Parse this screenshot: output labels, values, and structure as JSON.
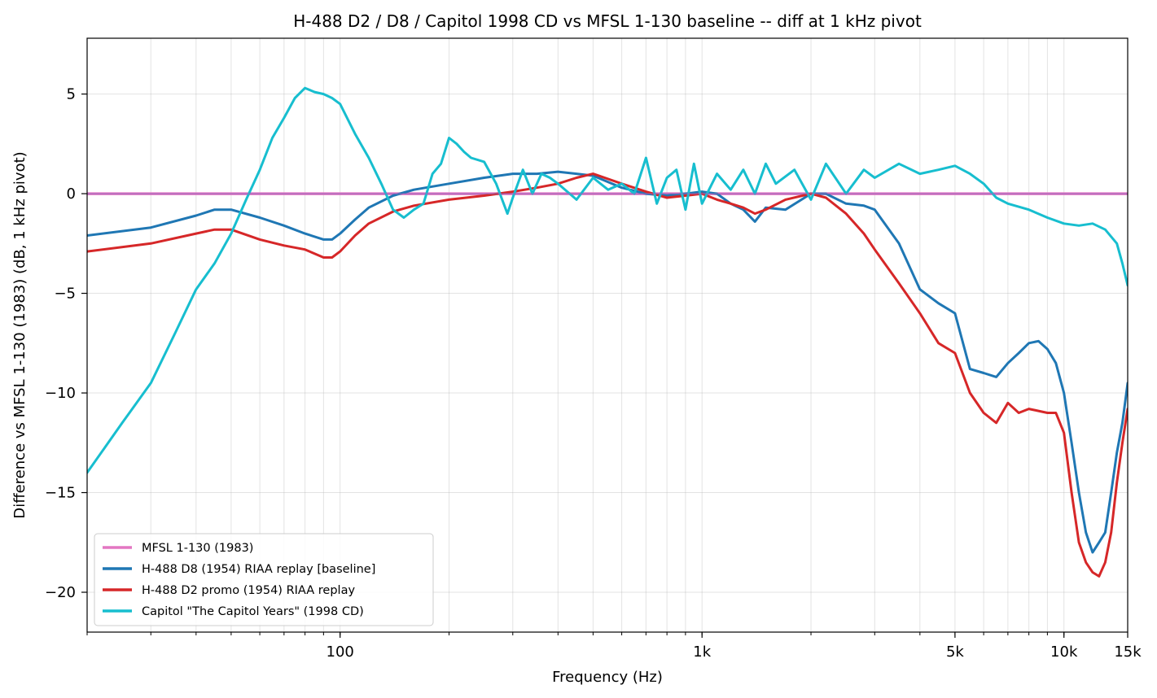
{
  "chart_data": {
    "type": "line",
    "title": "H-488 D2 / D8 / Capitol 1998 CD vs MFSL 1-130 baseline -- diff at 1 kHz pivot",
    "xlabel": "Frequency (Hz)",
    "ylabel": "Difference vs MFSL 1-130 (1983) (dB, 1 kHz pivot)",
    "xscale": "log",
    "xlim": [
      20,
      15000
    ],
    "ylim": [
      -22,
      7.8
    ],
    "grid": true,
    "legend_position": "lower-left",
    "x_ticks": [
      {
        "value": 100,
        "label": "100"
      },
      {
        "value": 1000,
        "label": "1k"
      },
      {
        "value": 5000,
        "label": "5k"
      },
      {
        "value": 10000,
        "label": "10k"
      },
      {
        "value": 15000,
        "label": "15k"
      }
    ],
    "y_ticks": [
      {
        "value": 5,
        "label": "5"
      },
      {
        "value": 0,
        "label": "0"
      },
      {
        "value": -5,
        "label": "−5"
      },
      {
        "value": -10,
        "label": "−10"
      },
      {
        "value": -15,
        "label": "−15"
      },
      {
        "value": -20,
        "label": "−20"
      }
    ],
    "series": [
      {
        "name": "MFSL 1-130 (1983)",
        "color": "#e377c2",
        "x": [
          20,
          15000
        ],
        "y": [
          0,
          0
        ]
      },
      {
        "name": "H-488 D8 (1954) RIAA replay [baseline]",
        "color": "#1f77b4",
        "x": [
          20,
          30,
          40,
          45,
          50,
          60,
          70,
          80,
          90,
          95,
          100,
          110,
          120,
          140,
          160,
          200,
          250,
          300,
          350,
          400,
          450,
          500,
          600,
          700,
          800,
          900,
          1000,
          1100,
          1200,
          1300,
          1400,
          1500,
          1700,
          2000,
          2200,
          2500,
          2800,
          3000,
          3500,
          4000,
          4500,
          5000,
          5500,
          6000,
          6500,
          7000,
          7500,
          8000,
          8500,
          9000,
          9500,
          10000,
          10500,
          11000,
          11500,
          12000,
          12500,
          13000,
          13500,
          14000,
          14500,
          15000
        ],
        "y": [
          -2.1,
          -1.7,
          -1.1,
          -0.8,
          -0.8,
          -1.2,
          -1.6,
          -2.0,
          -2.3,
          -2.3,
          -2.0,
          -1.3,
          -0.7,
          -0.1,
          0.2,
          0.5,
          0.8,
          1.0,
          1.0,
          1.1,
          1.0,
          0.9,
          0.3,
          0.0,
          -0.1,
          0.0,
          0.1,
          0.0,
          -0.5,
          -0.8,
          -1.4,
          -0.7,
          -0.8,
          0.0,
          0.0,
          -0.5,
          -0.6,
          -0.8,
          -2.5,
          -4.8,
          -5.5,
          -6.0,
          -8.8,
          -9.0,
          -9.2,
          -8.5,
          -8.0,
          -7.5,
          -7.4,
          -7.8,
          -8.5,
          -10.0,
          -12.5,
          -15.0,
          -17.0,
          -18.0,
          -17.5,
          -17.0,
          -15.0,
          -13.0,
          -11.5,
          -9.5
        ]
      },
      {
        "name": "H-488 D2 promo (1954) RIAA replay",
        "color": "#d62728",
        "x": [
          20,
          30,
          40,
          45,
          50,
          60,
          70,
          80,
          90,
          95,
          100,
          110,
          120,
          140,
          160,
          200,
          250,
          300,
          350,
          400,
          450,
          500,
          600,
          700,
          800,
          900,
          1000,
          1100,
          1200,
          1300,
          1400,
          1500,
          1700,
          2000,
          2200,
          2500,
          2800,
          3000,
          3500,
          4000,
          4500,
          5000,
          5500,
          6000,
          6500,
          7000,
          7500,
          8000,
          8500,
          9000,
          9500,
          10000,
          10500,
          11000,
          11500,
          12000,
          12500,
          13000,
          13500,
          14000,
          14500,
          15000
        ],
        "y": [
          -2.9,
          -2.5,
          -2.0,
          -1.8,
          -1.8,
          -2.3,
          -2.6,
          -2.8,
          -3.2,
          -3.2,
          -2.9,
          -2.1,
          -1.5,
          -0.9,
          -0.6,
          -0.3,
          -0.1,
          0.1,
          0.3,
          0.5,
          0.8,
          1.0,
          0.5,
          0.1,
          -0.2,
          -0.1,
          0.0,
          -0.3,
          -0.5,
          -0.7,
          -1.0,
          -0.8,
          -0.3,
          0.0,
          -0.2,
          -1.0,
          -2.0,
          -2.8,
          -4.5,
          -6.0,
          -7.5,
          -8.0,
          -10.0,
          -11.0,
          -11.5,
          -10.5,
          -11.0,
          -10.8,
          -10.9,
          -11.0,
          -11.0,
          -12.0,
          -15.0,
          -17.5,
          -18.5,
          -19.0,
          -19.2,
          -18.5,
          -17.0,
          -14.5,
          -12.5,
          -10.8
        ]
      },
      {
        "name": "Capitol \"The Capitol Years\" (1998 CD)",
        "color": "#17becf",
        "x": [
          20,
          25,
          30,
          35,
          40,
          45,
          50,
          55,
          60,
          65,
          70,
          75,
          80,
          85,
          90,
          95,
          100,
          110,
          120,
          130,
          140,
          150,
          160,
          170,
          180,
          190,
          200,
          210,
          220,
          230,
          250,
          270,
          290,
          300,
          320,
          340,
          360,
          380,
          400,
          450,
          500,
          550,
          600,
          650,
          700,
          750,
          800,
          850,
          900,
          950,
          1000,
          1100,
          1200,
          1300,
          1400,
          1500,
          1600,
          1800,
          2000,
          2200,
          2500,
          2800,
          3000,
          3500,
          4000,
          4500,
          5000,
          5500,
          6000,
          6500,
          7000,
          8000,
          9000,
          10000,
          11000,
          12000,
          13000,
          14000,
          14500,
          15000
        ],
        "y": [
          -14.0,
          -11.5,
          -9.5,
          -7.0,
          -4.8,
          -3.5,
          -2.0,
          -0.3,
          1.2,
          2.8,
          3.8,
          4.8,
          5.3,
          5.1,
          5.0,
          4.8,
          4.5,
          3.0,
          1.8,
          0.5,
          -0.8,
          -1.2,
          -0.8,
          -0.5,
          1.0,
          1.5,
          2.8,
          2.5,
          2.1,
          1.8,
          1.6,
          0.5,
          -1.0,
          -0.2,
          1.2,
          0.0,
          1.0,
          0.8,
          0.5,
          -0.3,
          0.8,
          0.2,
          0.5,
          0.0,
          1.8,
          -0.5,
          0.8,
          1.2,
          -0.8,
          1.5,
          -0.5,
          1.0,
          0.2,
          1.2,
          0.0,
          1.5,
          0.5,
          1.2,
          -0.3,
          1.5,
          0.0,
          1.2,
          0.8,
          1.5,
          1.0,
          1.2,
          1.4,
          1.0,
          0.5,
          -0.2,
          -0.5,
          -0.8,
          -1.2,
          -1.5,
          -1.6,
          -1.5,
          -1.8,
          -2.5,
          -3.5,
          -4.6
        ]
      }
    ]
  }
}
